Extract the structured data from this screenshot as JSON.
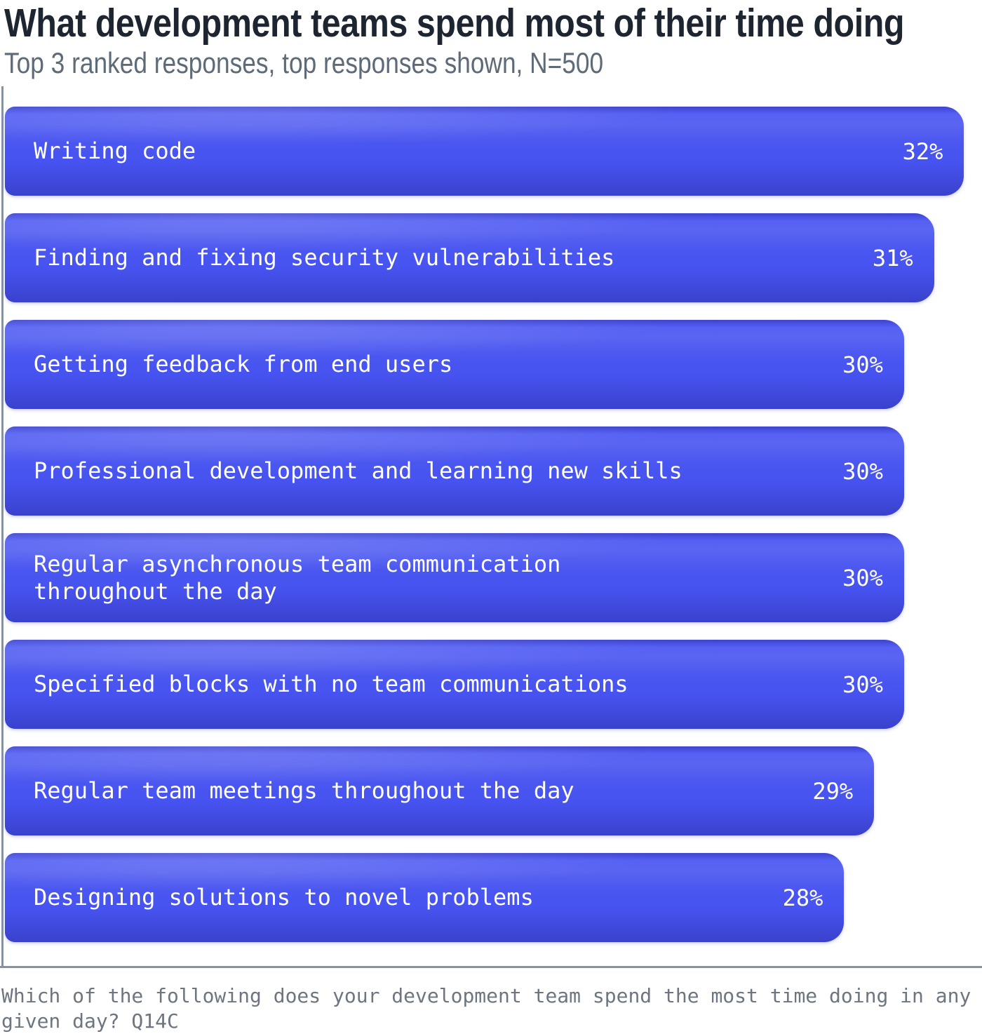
{
  "header": {
    "title": "What development teams spend most of their time doing",
    "subtitle": "Top 3 ranked responses, top responses shown, N=500"
  },
  "chart_data": {
    "type": "bar",
    "orientation": "horizontal",
    "title": "What development teams spend most of their time doing",
    "subtitle": "Top 3 ranked responses, top responses shown, N=500",
    "sample_note": "N=500",
    "categories": [
      "Writing code",
      "Finding and fixing security vulnerabilities",
      "Getting feedback from end users",
      "Professional development and learning new skills",
      "Regular asynchronous team communication\nthroughout the day",
      "Specified blocks with no team communications",
      "Regular team meetings throughout the day",
      "Designing solutions to novel problems"
    ],
    "values": [
      32,
      31,
      30,
      30,
      30,
      30,
      29,
      28
    ],
    "value_labels": [
      "32%",
      "31%",
      "30%",
      "30%",
      "30%",
      "30%",
      "29%",
      "28%"
    ],
    "value_suffix": "%",
    "xlim": [
      0,
      32.6
    ],
    "grid": false,
    "legend": false,
    "axis_lines": [
      "left",
      "bottom"
    ]
  },
  "footer": {
    "question": "Which of the following does your development team spend the most time doing in any given day? Q14C"
  },
  "colors": {
    "background": "#FFFFFF",
    "bar": "#4753F0",
    "bar_text": "#FFFFFF",
    "title": "#1D2531",
    "subtitle": "#5D6A77",
    "footer_text": "#6D7680",
    "axis": "#8792A0"
  }
}
